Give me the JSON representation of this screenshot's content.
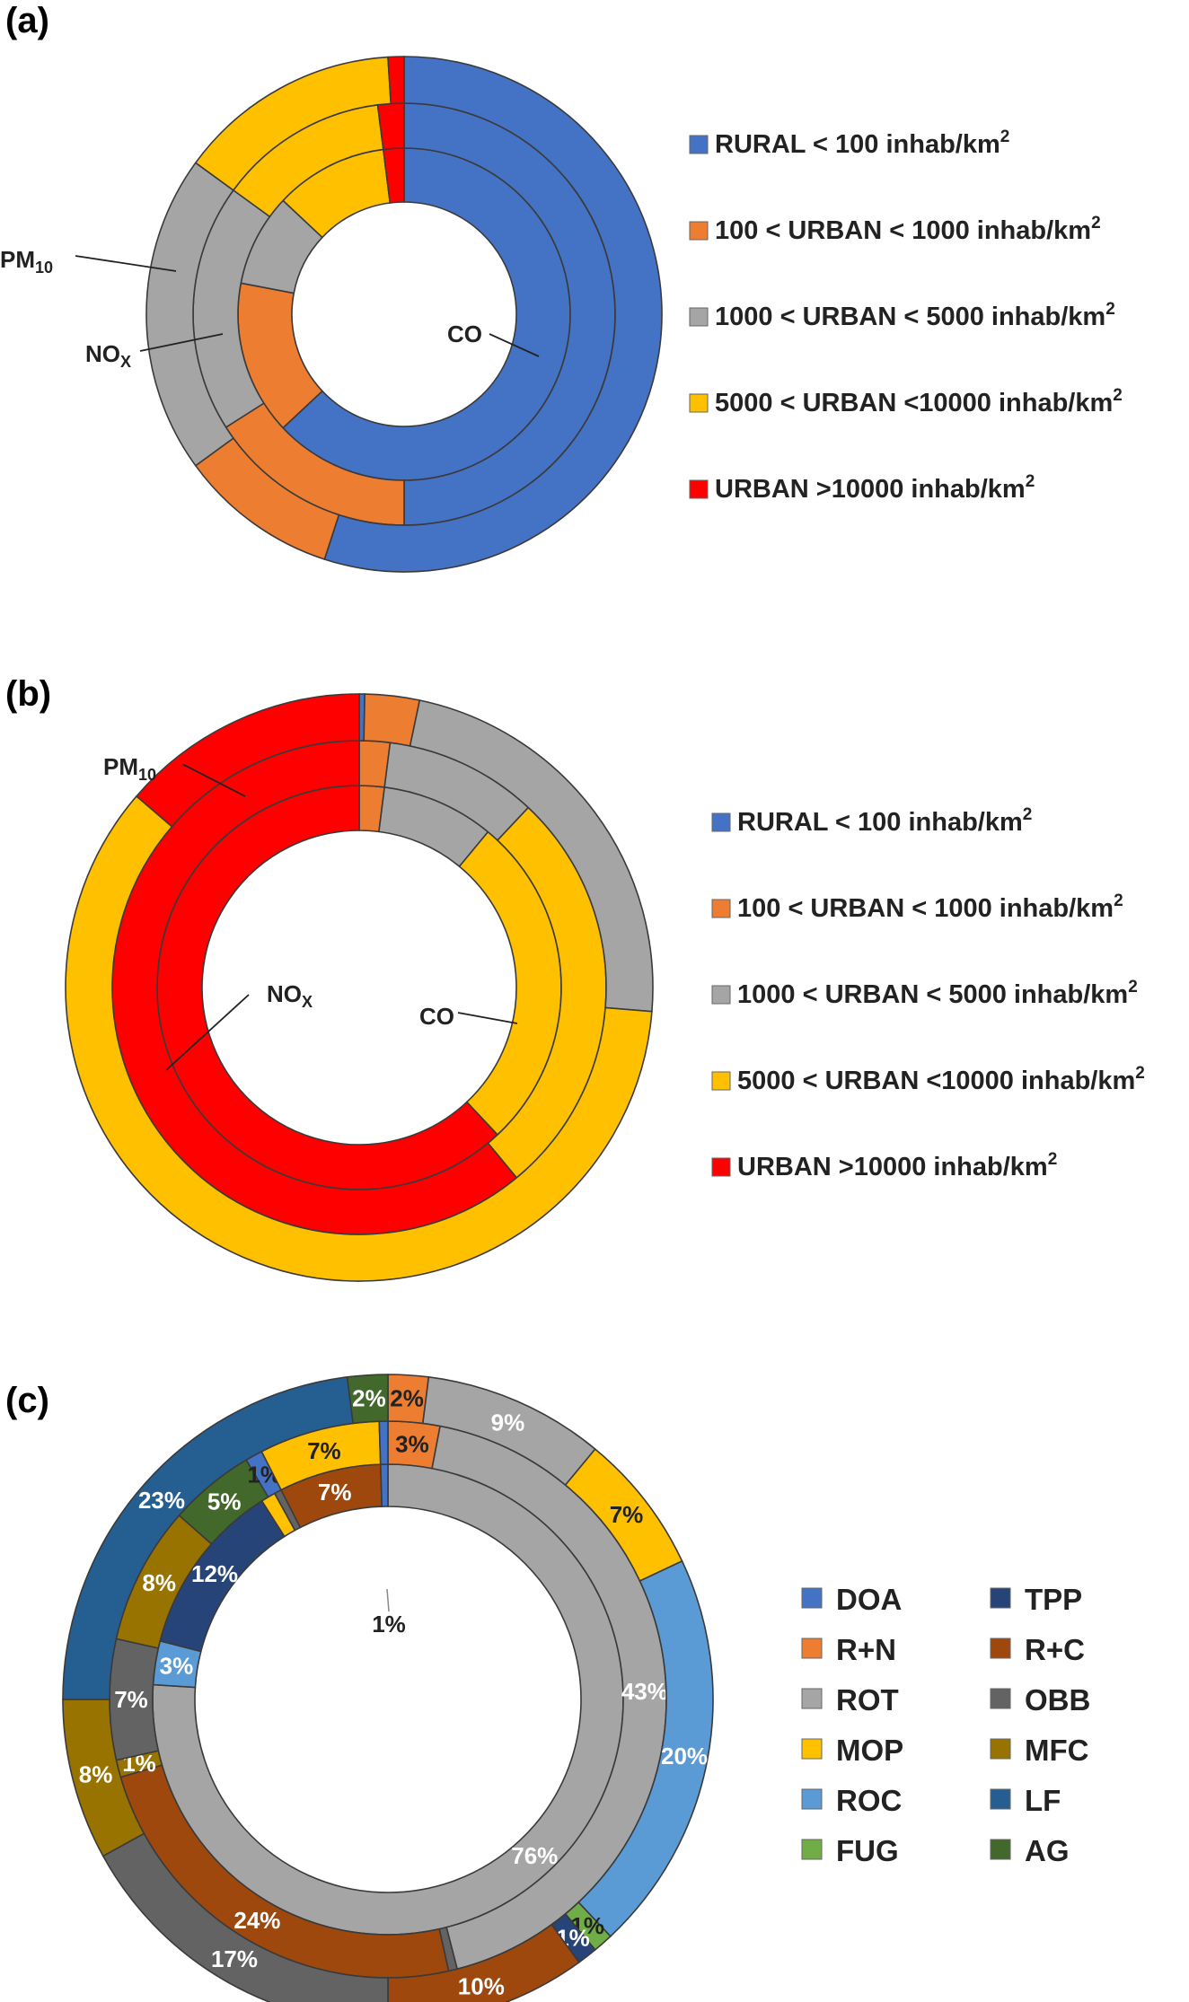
{
  "panels": [
    {
      "label": "(a)"
    },
    {
      "label": "(b)"
    },
    {
      "label": "(c)"
    }
  ],
  "chart_data": [
    {
      "type": "pie",
      "panel": "(a)",
      "rings_inner_to_outer": [
        "CO",
        "NOx",
        "PM10"
      ],
      "ring_labels": [
        {
          "ring": "CO",
          "text": "CO",
          "sub": ""
        },
        {
          "ring": "NOx",
          "text": "NO",
          "sub": "X"
        },
        {
          "ring": "PM10",
          "text": "PM",
          "sub": "10"
        }
      ],
      "legend": [
        {
          "text": "RURAL < 100 inhab/km",
          "sup": "2",
          "color": "#4472C4"
        },
        {
          "text": "100 < URBAN < 1000 inhab/km",
          "sup": "2",
          "color": "#ED7D31"
        },
        {
          "text": "1000 < URBAN < 5000 inhab/km",
          "sup": "2",
          "color": "#A5A5A5"
        },
        {
          "text": "5000 < URBAN <10000 inhab/km",
          "sup": "2",
          "color": "#FFC000"
        },
        {
          "text": "URBAN >10000 inhab/km",
          "sup": "2",
          "color": "#FF0000"
        }
      ],
      "series": [
        {
          "name": "CO",
          "values": [
            63,
            15,
            9,
            11,
            2
          ]
        },
        {
          "name": "NOx",
          "values": [
            50,
            16,
            19,
            13,
            2
          ]
        },
        {
          "name": "PM10",
          "values": [
            55,
            10,
            20,
            14,
            1
          ]
        }
      ]
    },
    {
      "type": "pie",
      "panel": "(b)",
      "rings_inner_to_outer": [
        "CO",
        "NOx",
        "PM10"
      ],
      "ring_labels": [
        {
          "ring": "CO",
          "text": "CO",
          "sub": ""
        },
        {
          "ring": "NOx",
          "text": "NO",
          "sub": "X"
        },
        {
          "ring": "PM10",
          "text": "PM",
          "sub": "10"
        }
      ],
      "legend": [
        {
          "text": "RURAL < 100 inhab/km",
          "sup": "2",
          "color": "#4472C4"
        },
        {
          "text": "100 < URBAN < 1000 inhab/km",
          "sup": "2",
          "color": "#ED7D31"
        },
        {
          "text": "1000 < URBAN < 5000 inhab/km",
          "sup": "2",
          "color": "#A5A5A5"
        },
        {
          "text": "5000 < URBAN <10000 inhab/km",
          "sup": "2",
          "color": "#FFC000"
        },
        {
          "text": "URBAN >10000 inhab/km",
          "sup": "2",
          "color": "#FF0000"
        }
      ],
      "series": [
        {
          "name": "CO",
          "values": [
            0,
            2,
            9,
            27,
            62
          ]
        },
        {
          "name": "NOx",
          "values": [
            0,
            2,
            10,
            27,
            61
          ]
        },
        {
          "name": "PM10",
          "values": [
            0.3,
            3,
            23,
            60,
            13.7
          ]
        }
      ]
    },
    {
      "type": "pie",
      "panel": "(c)",
      "rings_inner_to_outer": [
        "inner",
        "middle",
        "outer"
      ],
      "legend": [
        {
          "text": "DOA",
          "color": "#4472C4"
        },
        {
          "text": "TPP",
          "color": "#264478"
        },
        {
          "text": "R+N",
          "color": "#ED7D31"
        },
        {
          "text": "R+C",
          "color": "#9E480E"
        },
        {
          "text": "ROT",
          "color": "#A5A5A5"
        },
        {
          "text": "OBB",
          "color": "#636363"
        },
        {
          "text": "MOP",
          "color": "#FFC000"
        },
        {
          "text": "MFC",
          "color": "#997300"
        },
        {
          "text": "ROC",
          "color": "#5B9BD5"
        },
        {
          "text": "LF",
          "color": "#255E91"
        },
        {
          "text": "FUG",
          "color": "#70AD47"
        },
        {
          "text": "AG",
          "color": "#43682B"
        }
      ],
      "series": [
        {
          "name": "inner",
          "values": [
            {
              "cat": "ROT",
              "value": 76,
              "label": "76%"
            },
            {
              "cat": "ROC",
              "value": 3,
              "label": "3%"
            },
            {
              "cat": "TPP",
              "value": 12,
              "label": "12%"
            },
            {
              "cat": "MOP",
              "value": 1,
              "label": ""
            },
            {
              "cat": "OBB",
              "value": 0.5,
              "label": ""
            },
            {
              "cat": "R+C",
              "value": 7,
              "label": "7%"
            },
            {
              "cat": "DOA",
              "value": 0.5,
              "label": ""
            }
          ]
        },
        {
          "name": "middle",
          "values": [
            {
              "cat": "R+N",
              "value": 3,
              "label": "3%"
            },
            {
              "cat": "ROT",
              "value": 43,
              "label": "43%"
            },
            {
              "cat": "OBB",
              "value": 0.5,
              "label": ""
            },
            {
              "cat": "R+C",
              "value": 24,
              "label": "24%"
            },
            {
              "cat": "MFC",
              "value": 1,
              "label": "1%"
            },
            {
              "cat": "OBB",
              "value": 7,
              "label": "7%"
            },
            {
              "cat": "MFC",
              "value": 8,
              "label": "8%"
            },
            {
              "cat": "AG",
              "value": 5,
              "label": "5%"
            },
            {
              "cat": "DOA",
              "value": 1,
              "label": "1%"
            },
            {
              "cat": "MOP",
              "value": 7,
              "label": "7%"
            },
            {
              "cat": "DOA",
              "value": 0.5,
              "label": ""
            }
          ]
        },
        {
          "name": "outer",
          "values": [
            {
              "cat": "R+N",
              "value": 2,
              "label": "2%"
            },
            {
              "cat": "ROT",
              "value": 9,
              "label": "9%"
            },
            {
              "cat": "MOP",
              "value": 7,
              "label": "7%"
            },
            {
              "cat": "ROC",
              "value": 20,
              "label": "20%"
            },
            {
              "cat": "FUG",
              "value": 1,
              "label": "1%"
            },
            {
              "cat": "TPP",
              "value": 1,
              "label": "1%"
            },
            {
              "cat": "R+C",
              "value": 10,
              "label": "10%"
            },
            {
              "cat": "OBB",
              "value": 17,
              "label": "17%"
            },
            {
              "cat": "MFC",
              "value": 8,
              "label": "8%"
            },
            {
              "cat": "LF",
              "value": 23,
              "label": "23%"
            },
            {
              "cat": "AG",
              "value": 2,
              "label": "2%"
            }
          ]
        }
      ],
      "extra_labels": [
        "1%"
      ]
    }
  ]
}
